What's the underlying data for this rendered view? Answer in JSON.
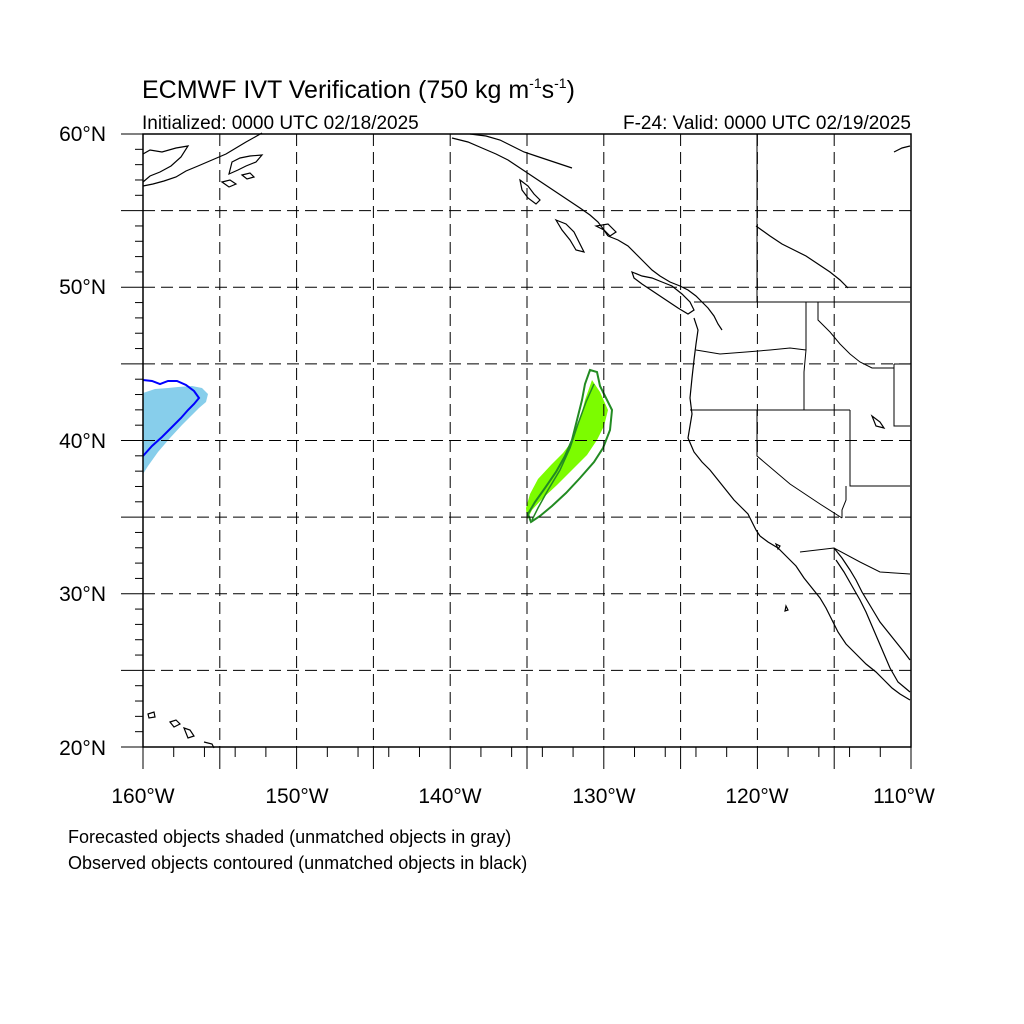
{
  "title": {
    "main": "ECMWF IVT Verification (750 kg m",
    "sup1": "-1",
    "mid": "s",
    "sup2": "-1",
    "end": ")"
  },
  "init_label": "Initialized: 0000 UTC 02/18/2025",
  "valid_label": "F-24: Valid: 0000 UTC 02/19/2025",
  "lat_labels": [
    "60°N",
    "50°N",
    "40°N",
    "30°N",
    "20°N"
  ],
  "lon_labels": [
    "160°W",
    "150°W",
    "140°W",
    "130°W",
    "120°W",
    "110°W"
  ],
  "caption_forecast": "Forecasted objects shaded (unmatched objects in gray)",
  "caption_observed": "Observed objects contoured (unmatched objects in black)",
  "map": {
    "lon_range": [
      -160,
      -110
    ],
    "lat_range": [
      20,
      60
    ],
    "grid_lons": [
      -155,
      -150,
      -145,
      -140,
      -135,
      -130,
      -125,
      -120,
      -115
    ],
    "grid_lats": [
      25,
      30,
      35,
      40,
      45,
      50,
      55
    ],
    "colors": {
      "object1_fill": "#87ceeb",
      "object1_contour": "#0000ff",
      "object2_fill": "#7cfc00",
      "object2_contour": "#228b22",
      "coast": "#000000",
      "grid": "#000000"
    }
  }
}
